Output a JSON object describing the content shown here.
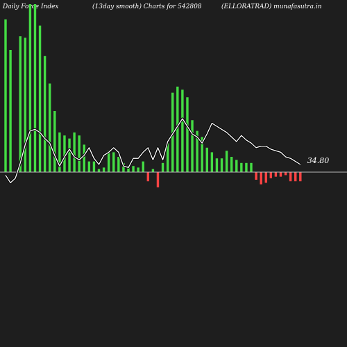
{
  "header": {
    "left": "Daily Force Index",
    "center": "(13day smooth) Charts for 542808",
    "right": "(ELLORATRAD) munafasutra.in"
  },
  "chart_data": {
    "type": "bar",
    "title": "",
    "xlabel": "",
    "ylabel": "",
    "ylim": [
      -1.0,
      11.0
    ],
    "zero_line": true,
    "grid": false,
    "colors": {
      "background": "#1e1e1e",
      "positive": "#44dd44",
      "negative": "#ff4444",
      "line": "#ffffff",
      "zero_line": "#bbbbbb"
    },
    "series": [
      {
        "type": "bar",
        "values": [
          10.0,
          8.0,
          0.0,
          8.9,
          8.8,
          11.0,
          11.0,
          9.6,
          7.6,
          5.8,
          4.0,
          2.6,
          2.4,
          2.2,
          2.6,
          2.4,
          1.8,
          0.7,
          0.7,
          0.2,
          0.3,
          1.4,
          1.3,
          1.0,
          0.6,
          0.4,
          0.4,
          0.3,
          0.7,
          -0.6,
          0.2,
          -1.0,
          0.6,
          1.9,
          5.2,
          5.6,
          5.4,
          4.9,
          3.4,
          2.7,
          2.3,
          1.6,
          1.3,
          0.9,
          0.9,
          1.4,
          1.0,
          0.8,
          0.6,
          0.6,
          0.6,
          -0.5,
          -0.8,
          -0.7,
          -0.4,
          -0.3,
          -0.3,
          -0.2,
          -0.6,
          -0.6,
          -0.6
        ]
      },
      {
        "type": "line",
        "values": [
          -0.2,
          -0.7,
          -0.4,
          0.6,
          1.8,
          2.7,
          2.8,
          2.6,
          2.2,
          1.9,
          1.1,
          0.4,
          1.0,
          1.5,
          1.0,
          0.8,
          1.1,
          1.6,
          0.9,
          0.5,
          1.1,
          1.3,
          1.6,
          1.3,
          0.4,
          0.3,
          0.9,
          0.9,
          1.3,
          1.6,
          0.8,
          1.6,
          0.8,
          2.0,
          2.5,
          3.0,
          3.5,
          3.0,
          2.5,
          2.3,
          1.9,
          2.5,
          3.2,
          3.0,
          2.8,
          2.6,
          2.3,
          2.0,
          2.4,
          2.1,
          1.9,
          1.6,
          1.7,
          1.7,
          1.5,
          1.4,
          1.3,
          1.0,
          0.9,
          0.7,
          0.5
        ]
      }
    ],
    "last_value_label": "34.80"
  }
}
